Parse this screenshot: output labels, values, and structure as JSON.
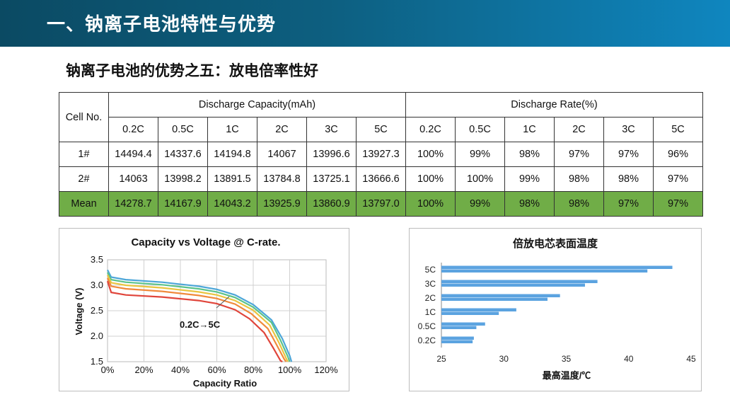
{
  "header": {
    "title": "一、钠离子电池特性与优势"
  },
  "subtitle": "钠离子电池的优势之五：放电倍率性好",
  "table": {
    "cell_no_label": "Cell No.",
    "group_capacity": "Discharge Capacity(mAh)",
    "group_rate": "Discharge Rate(%)",
    "rates": [
      "0.2C",
      "0.5C",
      "1C",
      "2C",
      "3C",
      "5C"
    ],
    "rows": [
      {
        "label": "1#",
        "capacity": [
          "14494.4",
          "14337.6",
          "14194.8",
          "14067",
          "13996.6",
          "13927.3"
        ],
        "rate": [
          "100%",
          "99%",
          "98%",
          "97%",
          "97%",
          "96%"
        ]
      },
      {
        "label": "2#",
        "capacity": [
          "14063",
          "13998.2",
          "13891.5",
          "13784.8",
          "13725.1",
          "13666.6"
        ],
        "rate": [
          "100%",
          "100%",
          "99%",
          "98%",
          "98%",
          "97%"
        ]
      },
      {
        "label": "Mean",
        "capacity": [
          "14278.7",
          "14167.9",
          "14043.2",
          "13925.9",
          "13860.9",
          "13797.0"
        ],
        "rate": [
          "100%",
          "99%",
          "98%",
          "98%",
          "97%",
          "97%"
        ]
      }
    ],
    "mean_color": "#70ad47"
  },
  "chart_data": [
    {
      "type": "line",
      "title": "Capacity vs Voltage @ C-rate.",
      "xlabel": "Capacity Ratio",
      "ylabel": "Voltage (V)",
      "x_ticks": [
        "0%",
        "20%",
        "40%",
        "60%",
        "80%",
        "100%",
        "120%"
      ],
      "y_ticks": [
        "1.5",
        "2.0",
        "2.5",
        "3.0",
        "3.5"
      ],
      "xlim": [
        0,
        120
      ],
      "ylim": [
        1.5,
        3.5
      ],
      "annotation": "0.2C→5C",
      "series": [
        {
          "color": "#4ca6d8",
          "points": [
            [
              0,
              3.3
            ],
            [
              2,
              3.16
            ],
            [
              10,
              3.11
            ],
            [
              30,
              3.06
            ],
            [
              50,
              2.98
            ],
            [
              60,
              2.92
            ],
            [
              70,
              2.81
            ],
            [
              80,
              2.62
            ],
            [
              90,
              2.32
            ],
            [
              96,
              1.95
            ],
            [
              100,
              1.62
            ],
            [
              101,
              1.5
            ]
          ]
        },
        {
          "color": "#5cc38a",
          "points": [
            [
              0,
              3.25
            ],
            [
              2,
              3.11
            ],
            [
              10,
              3.06
            ],
            [
              30,
              3.01
            ],
            [
              50,
              2.93
            ],
            [
              60,
              2.87
            ],
            [
              70,
              2.76
            ],
            [
              80,
              2.57
            ],
            [
              90,
              2.27
            ],
            [
              95,
              1.92
            ],
            [
              99,
              1.6
            ],
            [
              100,
              1.5
            ]
          ]
        },
        {
          "color": "#e9c541",
          "points": [
            [
              0,
              3.2
            ],
            [
              2,
              3.05
            ],
            [
              10,
              3.0
            ],
            [
              30,
              2.95
            ],
            [
              50,
              2.87
            ],
            [
              60,
              2.81
            ],
            [
              70,
              2.7
            ],
            [
              80,
              2.51
            ],
            [
              89,
              2.22
            ],
            [
              94,
              1.88
            ],
            [
              98,
              1.57
            ],
            [
              99,
              1.5
            ]
          ]
        },
        {
          "color": "#f08a3c",
          "points": [
            [
              0,
              3.14
            ],
            [
              2,
              2.98
            ],
            [
              10,
              2.93
            ],
            [
              30,
              2.88
            ],
            [
              50,
              2.8
            ],
            [
              60,
              2.74
            ],
            [
              70,
              2.63
            ],
            [
              79,
              2.44
            ],
            [
              88,
              2.15
            ],
            [
              93,
              1.82
            ],
            [
              97,
              1.55
            ],
            [
              98,
              1.5
            ]
          ]
        },
        {
          "color": "#e0453b",
          "points": [
            [
              0,
              3.08
            ],
            [
              2,
              2.86
            ],
            [
              10,
              2.81
            ],
            [
              30,
              2.77
            ],
            [
              50,
              2.7
            ],
            [
              60,
              2.64
            ],
            [
              70,
              2.52
            ],
            [
              78,
              2.34
            ],
            [
              86,
              2.07
            ],
            [
              91,
              1.77
            ],
            [
              95,
              1.52
            ],
            [
              96,
              1.5
            ]
          ]
        }
      ]
    },
    {
      "type": "bar",
      "title": "倍放电芯表面温度",
      "xlabel": "最高温度/℃",
      "categories": [
        "5C",
        "3C",
        "2C",
        "1C",
        "0.5C",
        "0.2C"
      ],
      "x_ticks": [
        "25",
        "30",
        "35",
        "40",
        "45"
      ],
      "xlim": [
        25,
        45
      ],
      "bar_color": "#5ba3e0",
      "series": [
        {
          "values": [
            43.5,
            37.5,
            34.5,
            31.0,
            28.5,
            27.6
          ]
        },
        {
          "values": [
            41.5,
            36.5,
            33.5,
            29.6,
            27.8,
            27.5
          ]
        }
      ]
    }
  ]
}
